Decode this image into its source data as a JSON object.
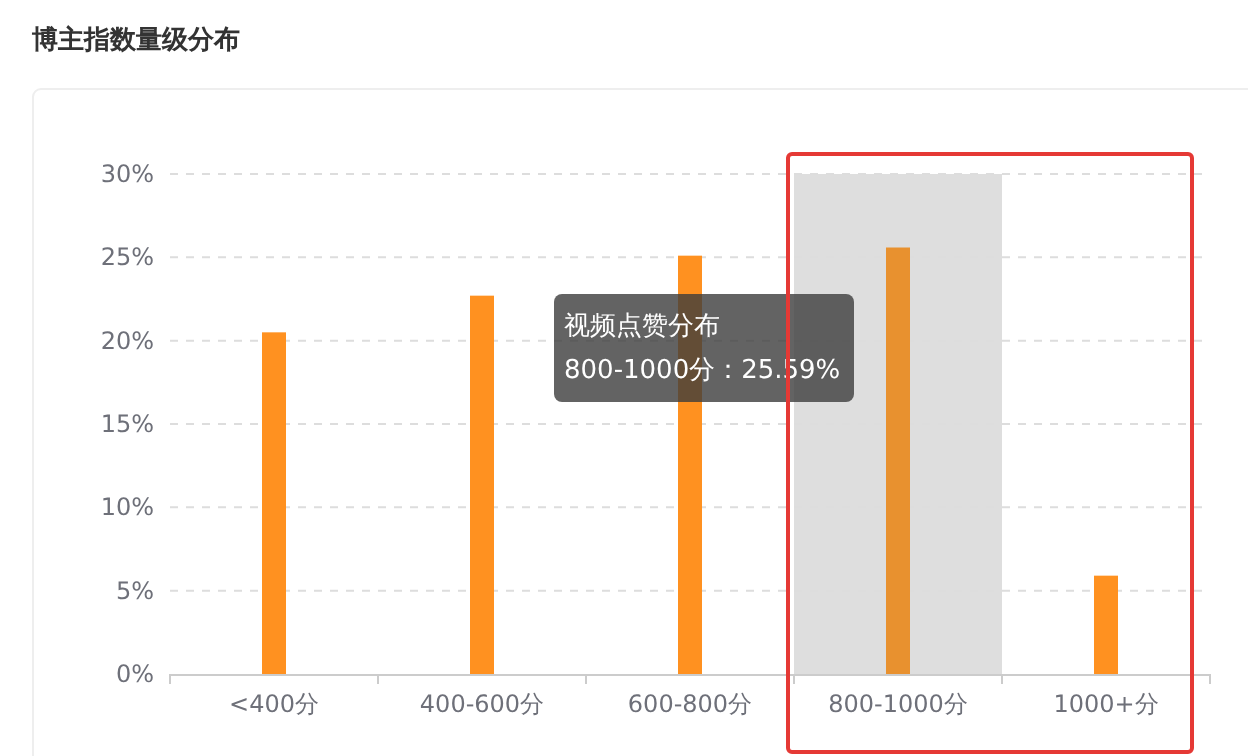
{
  "chart_data": {
    "type": "bar",
    "title": "博主指数量级分布",
    "categories": [
      "<400分",
      "400-600分",
      "600-800分",
      "800-1000分",
      "1000+分"
    ],
    "values": [
      20.5,
      22.7,
      25.1,
      25.59,
      5.9
    ],
    "colors": [
      "#ff9120",
      "#ff9120",
      "#ff9120",
      "#e8912f",
      "#ff9120"
    ],
    "ylim": [
      0,
      30
    ],
    "yticks": [
      {
        "value": 0,
        "label": "0%"
      },
      {
        "value": 5,
        "label": "5%"
      },
      {
        "value": 10,
        "label": "10%"
      },
      {
        "value": 15,
        "label": "15%"
      },
      {
        "value": 20,
        "label": "20%"
      },
      {
        "value": 25,
        "label": "25%"
      },
      {
        "value": 30,
        "label": "30%"
      }
    ],
    "grid": "y",
    "bands": [
      {
        "axis": "x",
        "from": "800-1000分",
        "to": "800-1000分",
        "color": "#dedede"
      }
    ],
    "annotations": [
      "视频点赞分布",
      "800-1000分：25.59%"
    ]
  }
}
